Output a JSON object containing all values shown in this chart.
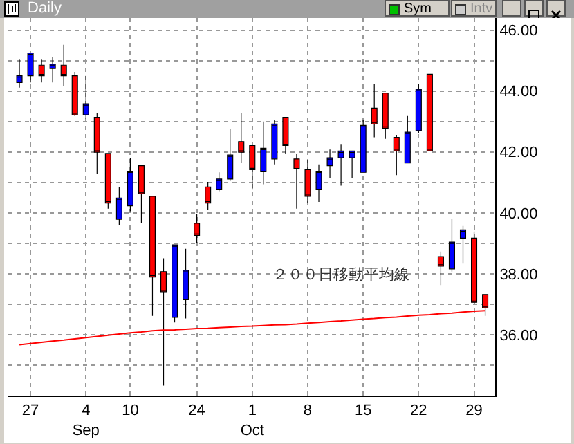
{
  "chart_data": {
    "type": "candlestick",
    "title": "Daily",
    "annotations": [
      "Sym",
      "Intv"
    ],
    "categories": [
      null,
      "27",
      null,
      null,
      null,
      null,
      "4\nSep",
      null,
      null,
      null,
      "10",
      null,
      null,
      null,
      null,
      null,
      "24",
      null,
      null,
      null,
      null,
      "1\nOct",
      null,
      null,
      null,
      null,
      "8",
      null,
      null,
      null,
      null,
      "15",
      null,
      null,
      null,
      null,
      "22",
      null,
      null,
      null,
      null,
      "29",
      null
    ],
    "ohlc": [
      [
        44.28,
        45.03,
        44.11,
        44.5
      ],
      [
        44.5,
        45.25,
        44.28,
        45.25
      ],
      [
        44.85,
        45.03,
        44.28,
        44.5
      ],
      [
        44.74,
        45.12,
        44.28,
        44.88
      ],
      [
        44.85,
        45.52,
        44.15,
        44.5
      ],
      [
        44.5,
        44.63,
        43.18,
        43.22
      ],
      [
        43.22,
        44.5,
        43.09,
        43.58
      ],
      [
        43.14,
        43.27,
        41.29,
        41.99
      ],
      [
        41.95,
        41.95,
        40.14,
        40.32
      ],
      [
        39.79,
        40.85,
        39.61,
        40.49
      ],
      [
        40.23,
        41.81,
        40.05,
        41.37
      ],
      [
        41.55,
        41.55,
        39.66,
        40.63
      ],
      [
        40.54,
        40.54,
        36.62,
        37.89
      ],
      [
        38.07,
        38.51,
        34.33,
        37.41
      ],
      [
        36.57,
        38.95,
        36.4,
        38.95
      ],
      [
        37.15,
        38.82,
        36.53,
        38.11
      ],
      [
        39.66,
        39.96,
        39.0,
        39.26
      ],
      [
        40.85,
        41.02,
        40.1,
        40.32
      ],
      [
        40.76,
        41.33,
        40.71,
        41.11
      ],
      [
        41.11,
        42.75,
        41.07,
        41.9
      ],
      [
        42.34,
        43.27,
        41.64,
        41.99
      ],
      [
        42.21,
        42.21,
        40.76,
        41.42
      ],
      [
        41.37,
        43.0,
        40.94,
        42.12
      ],
      [
        41.77,
        43.05,
        41.59,
        42.92
      ],
      [
        43.14,
        43.14,
        41.95,
        42.21
      ],
      [
        41.77,
        41.95,
        40.14,
        41.46
      ],
      [
        41.42,
        41.73,
        40.32,
        40.54
      ],
      [
        40.76,
        41.59,
        40.36,
        41.37
      ],
      [
        41.55,
        42.08,
        41.15,
        41.81
      ],
      [
        41.81,
        42.26,
        40.89,
        42.03
      ],
      [
        41.81,
        42.03,
        41.15,
        42.03
      ],
      [
        41.33,
        43.05,
        41.33,
        42.87
      ],
      [
        43.44,
        44.24,
        42.48,
        42.92
      ],
      [
        43.93,
        43.93,
        42.43,
        42.78
      ],
      [
        42.48,
        42.56,
        41.24,
        42.04
      ],
      [
        41.64,
        43.18,
        41.64,
        42.65
      ],
      [
        42.7,
        44.24,
        42.61,
        44.06
      ],
      [
        44.55,
        44.55,
        42.04,
        42.04
      ],
      [
        38.56,
        38.73,
        37.63,
        38.25
      ],
      [
        38.16,
        39.79,
        38.07,
        39.04
      ],
      [
        39.17,
        39.57,
        38.33,
        39.44
      ],
      [
        39.17,
        39.39,
        37.06,
        37.06
      ],
      [
        37.32,
        37.32,
        36.62,
        36.88
      ]
    ],
    "colors": [
      "#0000ff",
      "#0000ff",
      "#ff0000",
      "#0000ff",
      "#ff0000",
      "#ff0000",
      "#0000ff",
      "#ff0000",
      "#ff0000",
      "#0000ff",
      "#0000ff",
      "#ff0000",
      "#ff0000",
      "#ff0000",
      "#0000ff",
      "#0000ff",
      "#ff0000",
      "#ff0000",
      "#0000ff",
      "#0000ff",
      "#ff0000",
      "#ff0000",
      "#0000ff",
      "#0000ff",
      "#ff0000",
      "#ff0000",
      "#ff0000",
      "#0000ff",
      "#0000ff",
      "#0000ff",
      "#0000ff",
      "#0000ff",
      "#ff0000",
      "#ff0000",
      "#ff0000",
      "#0000ff",
      "#0000ff",
      "#ff0000",
      "#ff0000",
      "#0000ff",
      "#0000ff",
      "#ff0000",
      "#ff0000"
    ],
    "series": [
      {
        "type": "line",
        "name": "２００日移動平均線",
        "color": "#ff0000",
        "values": [
          35.67,
          35.71,
          35.75,
          35.79,
          35.82,
          35.86,
          35.9,
          35.94,
          35.98,
          36.02,
          36.06,
          36.09,
          36.13,
          36.15,
          36.16,
          36.18,
          36.2,
          36.21,
          36.23,
          36.25,
          36.27,
          36.28,
          36.3,
          36.32,
          36.33,
          36.35,
          36.38,
          36.4,
          36.43,
          36.45,
          36.48,
          36.51,
          36.53,
          36.56,
          36.58,
          36.61,
          36.64,
          36.66,
          36.69,
          36.71,
          36.74,
          36.77,
          36.79
        ]
      }
    ],
    "ylim": [
      34,
      46.4
    ],
    "yticks": [
      {
        "value": 36,
        "label": "36.00"
      },
      {
        "value": 37,
        "label": null
      },
      {
        "value": 38,
        "label": "38.00"
      },
      {
        "value": 39,
        "label": null
      },
      {
        "value": 40,
        "label": "40.00"
      },
      {
        "value": 41,
        "label": null
      },
      {
        "value": 42,
        "label": "42.00"
      },
      {
        "value": 43,
        "label": null
      },
      {
        "value": 44,
        "label": "44.00"
      },
      {
        "value": 45,
        "label": null
      },
      {
        "value": 46,
        "label": "46.00"
      },
      {
        "value": 35,
        "label": null
      }
    ],
    "grid": true,
    "legend": false,
    "marker": "none",
    "line_style": "solid"
  }
}
